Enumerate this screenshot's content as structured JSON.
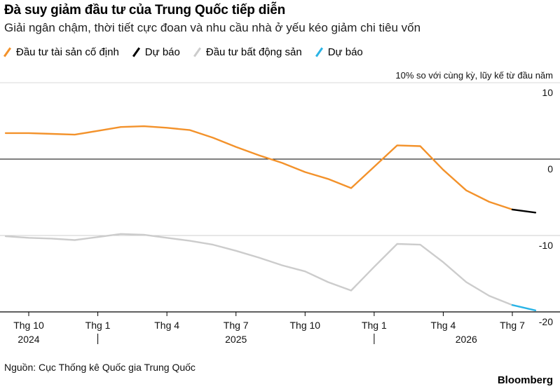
{
  "header": {
    "title": "Đà suy giảm đầu tư của Trung Quốc tiếp diễn",
    "subtitle": "Giải ngân chậm, thời tiết cực đoan và nhu cầu nhà ở yếu kéo giảm chi tiêu vốn"
  },
  "legend": [
    {
      "label": "Đầu tư tài sản cố định",
      "color": "#f3922b"
    },
    {
      "label": "Dự báo",
      "color": "#000000"
    },
    {
      "label": "Đầu tư bất động sản",
      "color": "#cccccc"
    },
    {
      "label": "Dự báo",
      "color": "#2ab4e6"
    }
  ],
  "unit_label": "10% so với cùng kỳ, lũy kế từ đầu năm",
  "footer": {
    "source": "Nguồn: Cục Thống kê Quốc gia Trung Quốc",
    "brand": "Bloomberg"
  },
  "chart_data": {
    "type": "line",
    "panels": [
      {
        "name": "top",
        "ylim": [
          -10,
          10
        ],
        "yticks": [
          10,
          0,
          -10
        ],
        "zero_line": 0
      },
      {
        "name": "bottom",
        "ylim": [
          -20,
          -10
        ],
        "yticks": [
          -20
        ]
      }
    ],
    "x_ticks": [
      {
        "label": "Thg 10",
        "date": "2024-10"
      },
      {
        "label": "Thg 1",
        "date": "2025-01"
      },
      {
        "label": "Thg 4",
        "date": "2025-04"
      },
      {
        "label": "Thg 7",
        "date": "2025-07"
      },
      {
        "label": "Thg 10",
        "date": "2025-10"
      },
      {
        "label": "Thg 1",
        "date": "2026-01"
      },
      {
        "label": "Thg 4",
        "date": "2026-04"
      },
      {
        "label": "Thg 7",
        "date": "2026-07"
      }
    ],
    "year_labels": [
      "2024",
      "2025",
      "2026"
    ],
    "series": [
      {
        "name": "Đầu tư tài sản cố định",
        "panel": "top",
        "color": "#f3922b",
        "points": [
          [
            "2024-09",
            3.4
          ],
          [
            "2024-10",
            3.4
          ],
          [
            "2024-11",
            3.3
          ],
          [
            "2024-12",
            3.2
          ],
          [
            "2025-01",
            3.7
          ],
          [
            "2025-02",
            4.2
          ],
          [
            "2025-03",
            4.3
          ],
          [
            "2025-04",
            4.1
          ],
          [
            "2025-05",
            3.8
          ],
          [
            "2025-06",
            2.8
          ],
          [
            "2025-07",
            1.6
          ],
          [
            "2025-08",
            0.5
          ],
          [
            "2025-09",
            -0.5
          ],
          [
            "2025-10",
            -1.7
          ],
          [
            "2025-11",
            -2.6
          ],
          [
            "2025-12",
            -3.8
          ],
          [
            "2026-01",
            -1.0
          ],
          [
            "2026-02",
            1.8
          ],
          [
            "2026-03",
            1.7
          ],
          [
            "2026-04",
            -1.4
          ],
          [
            "2026-05",
            -4.1
          ],
          [
            "2026-06",
            -5.6
          ],
          [
            "2026-07",
            -6.6
          ]
        ]
      },
      {
        "name": "Dự báo",
        "panel": "top",
        "color": "#000000",
        "points": [
          [
            "2026-07",
            -6.6
          ],
          [
            "2026-08",
            -7.0
          ]
        ]
      },
      {
        "name": "Đầu tư bất động sản",
        "panel": "bottom",
        "color": "#cccccc",
        "points": [
          [
            "2024-09",
            -10.1
          ],
          [
            "2024-10",
            -10.3
          ],
          [
            "2024-11",
            -10.4
          ],
          [
            "2024-12",
            -10.6
          ],
          [
            "2025-01",
            -10.2
          ],
          [
            "2025-02",
            -9.8
          ],
          [
            "2025-03",
            -9.9
          ],
          [
            "2025-04",
            -10.3
          ],
          [
            "2025-05",
            -10.7
          ],
          [
            "2025-06",
            -11.2
          ],
          [
            "2025-07",
            -12.0
          ],
          [
            "2025-08",
            -12.9
          ],
          [
            "2025-09",
            -13.9
          ],
          [
            "2025-10",
            -14.7
          ],
          [
            "2025-11",
            -16.1
          ],
          [
            "2025-12",
            -17.2
          ],
          [
            "2026-01",
            -14.1
          ],
          [
            "2026-02",
            -11.1
          ],
          [
            "2026-03",
            -11.2
          ],
          [
            "2026-04",
            -13.5
          ],
          [
            "2026-05",
            -16.1
          ],
          [
            "2026-06",
            -17.9
          ],
          [
            "2026-07",
            -19.1
          ]
        ]
      },
      {
        "name": "Dự báo",
        "panel": "bottom",
        "color": "#2ab4e6",
        "points": [
          [
            "2026-07",
            -19.1
          ],
          [
            "2026-08",
            -19.8
          ]
        ]
      }
    ]
  }
}
